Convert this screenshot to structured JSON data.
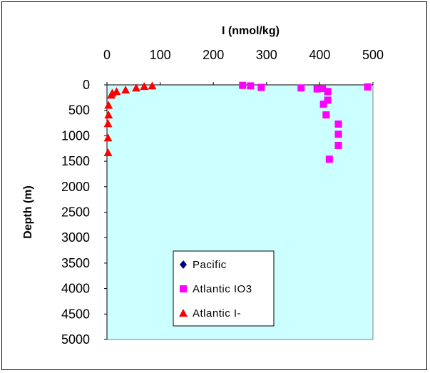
{
  "chart_data": {
    "type": "scatter",
    "title": "",
    "xlabel": "I (nmol/kg)",
    "ylabel": "Depth (m)",
    "xlim": [
      0,
      500
    ],
    "ylim": [
      5000,
      0
    ],
    "x_ticks": [
      "0",
      "100",
      "200",
      "300",
      "400",
      "500"
    ],
    "y_ticks": [
      "0",
      "500",
      "1000",
      "1500",
      "2000",
      "2500",
      "3000",
      "3500",
      "4000",
      "4500",
      "5000"
    ],
    "plot_background": "#ccffff",
    "grid": false,
    "legend_position": "lower-center",
    "series": [
      {
        "name": "Pacific",
        "marker": "diamond",
        "color": "#000080",
        "points": []
      },
      {
        "name": "Atlantic IO3",
        "marker": "square",
        "color": "#ff00ff",
        "points": [
          {
            "x": 255,
            "y": 10
          },
          {
            "x": 270,
            "y": 20
          },
          {
            "x": 290,
            "y": 50
          },
          {
            "x": 365,
            "y": 60
          },
          {
            "x": 395,
            "y": 80
          },
          {
            "x": 405,
            "y": 70
          },
          {
            "x": 415,
            "y": 130
          },
          {
            "x": 415,
            "y": 300
          },
          {
            "x": 407,
            "y": 380
          },
          {
            "x": 412,
            "y": 590
          },
          {
            "x": 435,
            "y": 770
          },
          {
            "x": 435,
            "y": 970
          },
          {
            "x": 435,
            "y": 1190
          },
          {
            "x": 418,
            "y": 1460
          },
          {
            "x": 490,
            "y": 40
          }
        ]
      },
      {
        "name": "Atlantic I-",
        "marker": "triangle",
        "color": "#ff0000",
        "points": [
          {
            "x": 85,
            "y": 20
          },
          {
            "x": 70,
            "y": 30
          },
          {
            "x": 55,
            "y": 60
          },
          {
            "x": 35,
            "y": 100
          },
          {
            "x": 18,
            "y": 130
          },
          {
            "x": 10,
            "y": 160
          },
          {
            "x": 8,
            "y": 200
          },
          {
            "x": 3,
            "y": 400
          },
          {
            "x": 3,
            "y": 590
          },
          {
            "x": 2,
            "y": 760
          },
          {
            "x": 2,
            "y": 1040
          },
          {
            "x": 2,
            "y": 1330
          }
        ]
      }
    ]
  }
}
